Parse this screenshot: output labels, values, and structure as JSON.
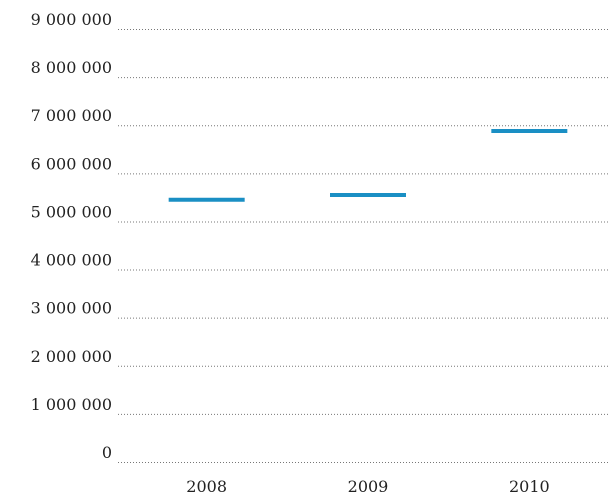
{
  "chart_data": {
    "type": "scatter",
    "categories": [
      "2008",
      "2009",
      "2010"
    ],
    "values": [
      5450000,
      5550000,
      6880000
    ],
    "color": "#1a8fc4",
    "ylim": [
      0,
      9000000
    ],
    "yticks": [
      0,
      {
        "value": 1000000,
        "label": "1 000 000"
      },
      {
        "value": 2000000,
        "label": "2 000 000"
      },
      {
        "value": 3000000,
        "label": "3 000 000"
      },
      {
        "value": 4000000,
        "label": "4 000 000"
      },
      {
        "value": 5000000,
        "label": "5 000 000"
      },
      {
        "value": 6000000,
        "label": "6 000 000"
      },
      {
        "value": 7000000,
        "label": "7 000 000"
      },
      {
        "value": 8000000,
        "label": "8 000 000"
      },
      {
        "value": 9000000,
        "label": "9 000 000"
      }
    ],
    "grid": true
  }
}
